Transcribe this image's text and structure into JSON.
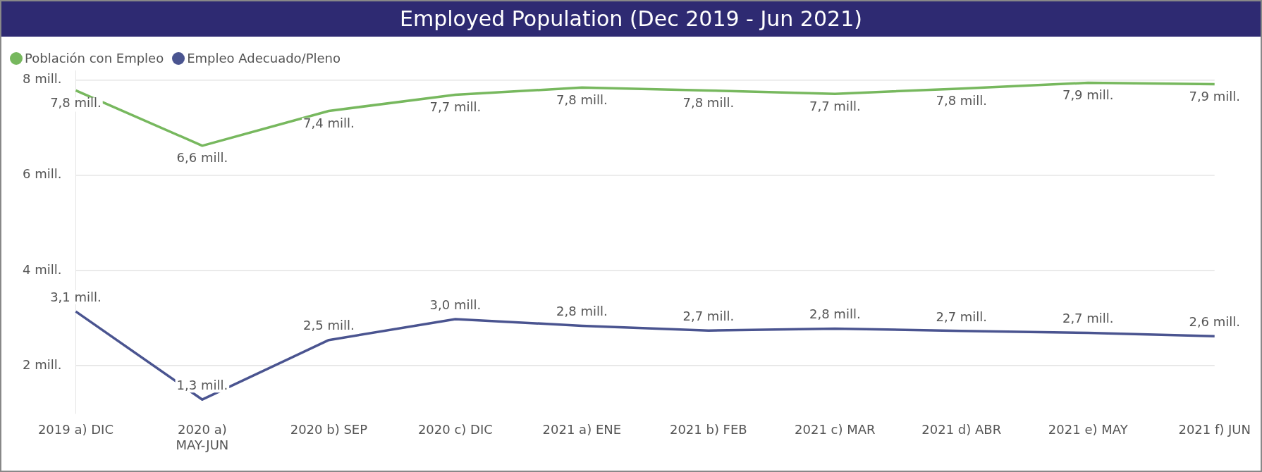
{
  "chart_data": {
    "type": "line",
    "title": "Employed Population (Dec 2019 - Jun 2021)",
    "categories": [
      "2019 a) DIC",
      "2020 a) MAY-JUN",
      "2020 b) SEP",
      "2020 c) DIC",
      "2021 a) ENE",
      "2021 b) FEB",
      "2021 c) MAR",
      "2021 d) ABR",
      "2021 e) MAY",
      "2021 f) JUN"
    ],
    "series": [
      {
        "name": "Población con Empleo",
        "color": "#77b85e",
        "values": [
          7.78,
          6.62,
          7.35,
          7.69,
          7.84,
          7.78,
          7.71,
          7.82,
          7.94,
          7.91
        ],
        "value_labels": [
          "7,8 mill.",
          "6,6 mill.",
          "7,4 mill.",
          "7,7 mill.",
          "7,8 mill.",
          "7,8 mill.",
          "7,7 mill.",
          "7,8 mill.",
          "7,9 mill.",
          "7,9 mill."
        ]
      },
      {
        "name": "Empleo Adecuado/Pleno",
        "color": "#4a5490",
        "values": [
          3.14,
          1.29,
          2.54,
          2.98,
          2.84,
          2.74,
          2.78,
          2.73,
          2.69,
          2.62
        ],
        "value_labels": [
          "3,1 mill.",
          "1,3 mill.",
          "2,5 mill.",
          "3,0 mill.",
          "2,8 mill.",
          "2,7 mill.",
          "2,8 mill.",
          "2,7 mill.",
          "2,7 mill.",
          "2,6 mill."
        ]
      }
    ],
    "ylim": [
      1,
      8.2
    ],
    "yticks": [
      {
        "value": 2,
        "label": "2 mill."
      },
      {
        "value": 4,
        "label": "4 mill."
      },
      {
        "value": 6,
        "label": "6 mill."
      },
      {
        "value": 8,
        "label": "8 mill."
      }
    ],
    "grid": "y",
    "legend": "top left",
    "marker": "none",
    "line_style": "solid"
  }
}
